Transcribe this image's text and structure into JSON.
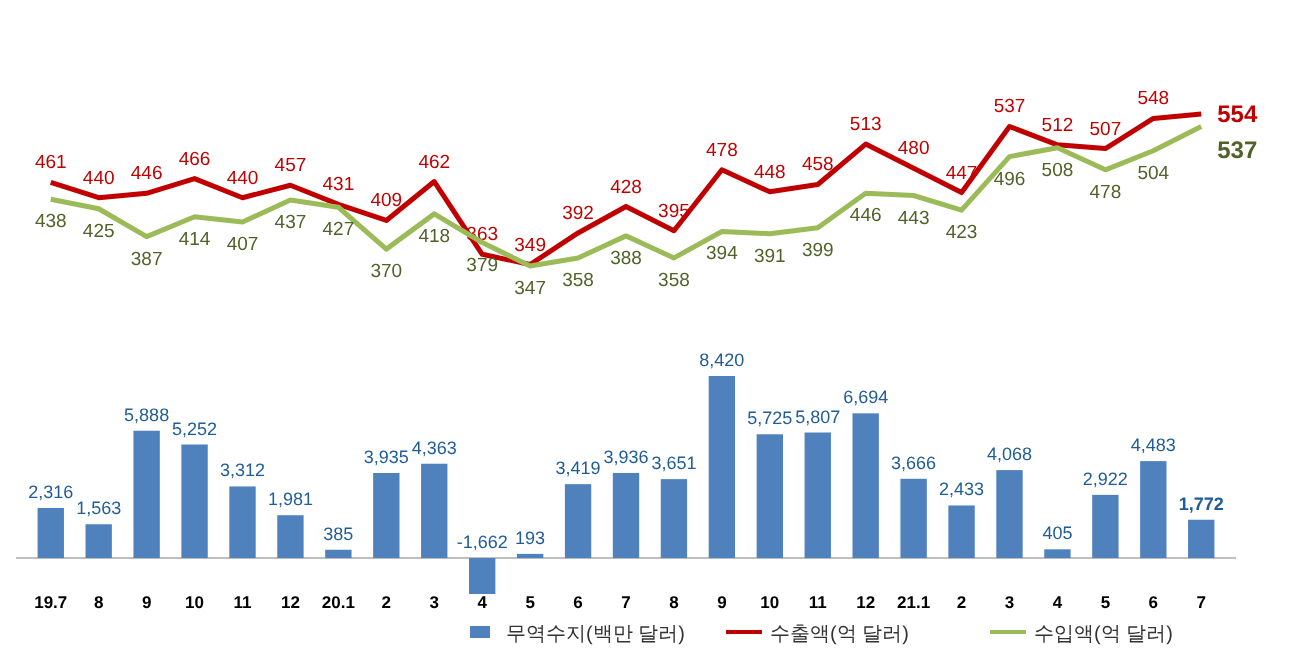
{
  "chart_data": [
    {
      "type": "line",
      "categories": [
        null,
        null,
        null,
        null,
        null,
        null,
        null,
        null,
        null,
        null,
        null,
        null,
        null,
        null,
        null,
        null,
        null,
        null,
        null,
        null,
        null,
        null,
        null,
        null,
        null
      ],
      "series": [
        {
          "name": "수출액(억 달러)",
          "color": "#c00000",
          "values": [
            461,
            440,
            446,
            466,
            440,
            457,
            431,
            409,
            462,
            363,
            349,
            392,
            428,
            395,
            478,
            448,
            458,
            513,
            480,
            447,
            537,
            512,
            507,
            548,
            554
          ]
        },
        {
          "name": "수입액(억 달러)",
          "color": "#9bbb59",
          "values": [
            438,
            425,
            387,
            414,
            407,
            437,
            427,
            370,
            418,
            379,
            347,
            358,
            388,
            358,
            394,
            391,
            399,
            446,
            443,
            423,
            496,
            508,
            478,
            504,
            537
          ]
        }
      ],
      "data_labels": true,
      "legend": "bottom",
      "marker": "none"
    },
    {
      "type": "bar",
      "categories": [
        "19.7",
        "8",
        "9",
        "10",
        "11",
        "12",
        "20.1",
        "2",
        "3",
        "4",
        "5",
        "6",
        "7",
        "8",
        "9",
        "10",
        "11",
        "12",
        "21.1",
        "2",
        "3",
        "4",
        "5",
        "6",
        "7"
      ],
      "series": [
        {
          "name": "무역수지(백만 달러)",
          "color": "#4f81bd",
          "values": [
            2316,
            1563,
            5888,
            5252,
            3312,
            1981,
            385,
            3935,
            4363,
            -1662,
            193,
            3419,
            3936,
            3651,
            8420,
            5725,
            5807,
            6694,
            3666,
            2433,
            4068,
            405,
            2922,
            4483,
            1772
          ],
          "value_labels": [
            "2,316",
            "1,563",
            "5,888",
            "5,252",
            "3,312",
            "1,981",
            "385",
            "3,935",
            "4,363",
            "-1,662",
            "193",
            "3,419",
            "3,936",
            "3,651",
            "8,420",
            "5,725",
            "5,807",
            "6,694",
            "3,666",
            "2,433",
            "4,068",
            "405",
            "2,922",
            "4,483",
            "1,772"
          ]
        }
      ],
      "legend": "bottom"
    }
  ]
}
